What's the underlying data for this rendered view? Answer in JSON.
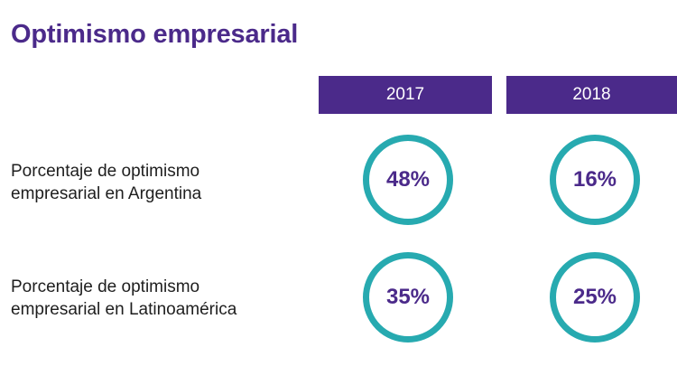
{
  "title": "Optimismo empresarial",
  "years": [
    "2017",
    "2018"
  ],
  "rows": [
    {
      "label": "Porcentaje de optimismo\nempresarial en Argentina",
      "values": [
        "48%",
        "16%"
      ]
    },
    {
      "label": "Porcentaje de optimismo\nempresarial en Latinoamérica",
      "values": [
        "35%",
        "25%"
      ]
    }
  ],
  "colors": {
    "brand_purple": "#4b2a8a",
    "ring_teal": "#27aab0",
    "text_dark": "#1e1e1e"
  }
}
